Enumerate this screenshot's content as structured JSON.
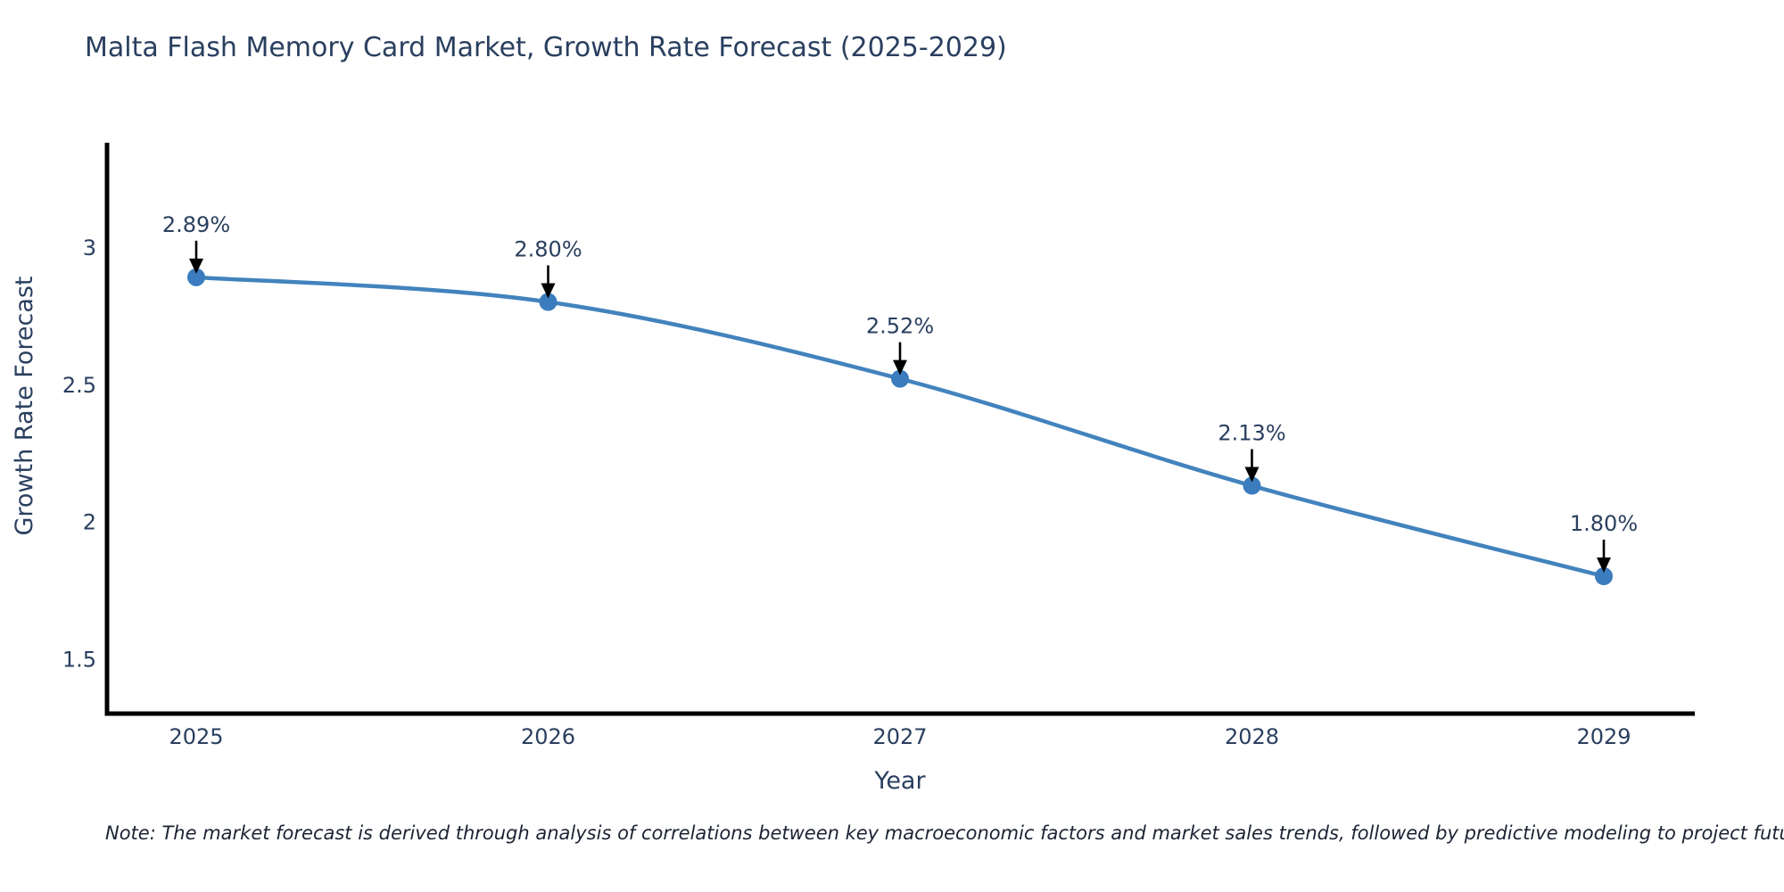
{
  "title": "Malta Flash Memory Card Market, Growth Rate Forecast (2025-2029)",
  "note": "Note: The market forecast is derived through analysis of correlations between key macroeconomic factors and market sales trends, followed by predictive modeling to project future sales",
  "chart_data": {
    "type": "line",
    "title": "Malta Flash Memory Card Market, Growth Rate Forecast (2025-2029)",
    "xlabel": "Year",
    "ylabel": "Growth Rate Forecast",
    "x": [
      "2025",
      "2026",
      "2027",
      "2028",
      "2029"
    ],
    "values": [
      2.89,
      2.8,
      2.52,
      2.13,
      1.8
    ],
    "point_labels": [
      "2.89%",
      "2.80%",
      "2.52%",
      "2.13%",
      "1.80%"
    ],
    "y_ticks": [
      "3",
      "2.5",
      "2",
      "1.5"
    ],
    "y_tick_values": [
      3,
      2.5,
      2,
      1.5
    ],
    "ylim": [
      1.3,
      3.38
    ],
    "grid": false,
    "legend": false,
    "line_style": "spline",
    "marker_style": "circle",
    "annotation_style": "arrow-down-to-point"
  },
  "colors": {
    "line": "#4283bd",
    "marker": "#3a7cbd",
    "arrow": "#000000",
    "axis_line": "#000000",
    "title_text": "#2a3f5f",
    "axis_text": "#2a3f5f",
    "annotation_text": "#2a3f5f",
    "note_text": "#1c2333",
    "background": "#ffffff"
  }
}
